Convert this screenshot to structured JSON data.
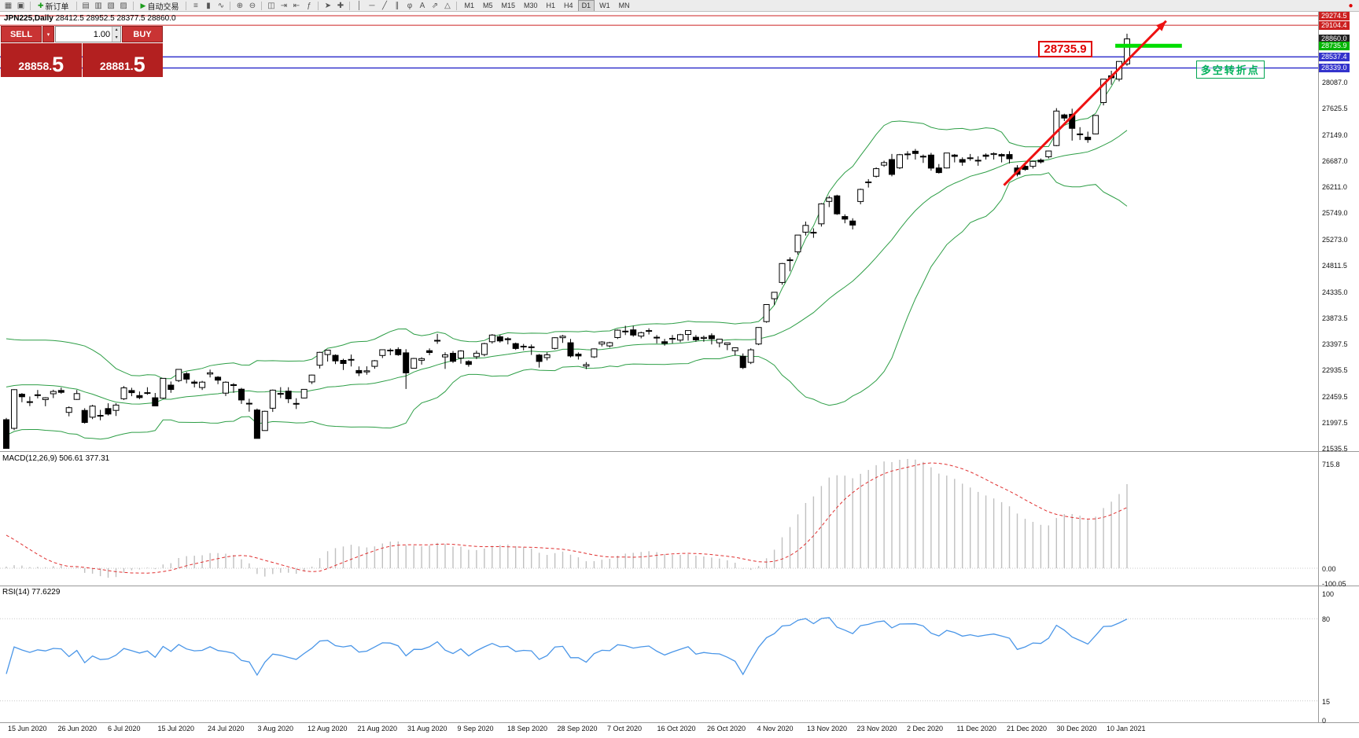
{
  "toolbar": {
    "items": [
      {
        "type": "icon",
        "name": "chart-window-icon",
        "glyph": "▦"
      },
      {
        "type": "icon",
        "name": "maximize-icon",
        "glyph": "▣"
      },
      {
        "type": "sep"
      },
      {
        "type": "button",
        "name": "new-order-button",
        "glyph": "✚",
        "glyph_color": "#1c9c1c",
        "label": "新订单"
      },
      {
        "type": "sep"
      },
      {
        "type": "icon",
        "name": "chart-profiles-icon",
        "glyph": "▤"
      },
      {
        "type": "icon",
        "name": "market-watch-icon",
        "glyph": "▥"
      },
      {
        "type": "icon",
        "name": "data-window-icon",
        "glyph": "▧"
      },
      {
        "type": "icon",
        "name": "navigator-icon",
        "glyph": "▨"
      },
      {
        "type": "sep"
      },
      {
        "type": "button",
        "name": "autotrade-button",
        "glyph": "▶",
        "glyph_color": "#1c9c1c",
        "label": "自动交易"
      },
      {
        "type": "sep"
      },
      {
        "type": "icon",
        "name": "bars-icon",
        "glyph": "≡"
      },
      {
        "type": "icon",
        "name": "candles-icon",
        "glyph": "▮"
      },
      {
        "type": "icon",
        "name": "line-chart-icon",
        "glyph": "∿"
      },
      {
        "type": "sep"
      },
      {
        "type": "icon",
        "name": "zoom-in-icon",
        "glyph": "⊕"
      },
      {
        "type": "icon",
        "name": "zoom-out-icon",
        "glyph": "⊖"
      },
      {
        "type": "sep"
      },
      {
        "type": "icon",
        "name": "tile-windows-icon",
        "glyph": "◫"
      },
      {
        "type": "icon",
        "name": "auto-scroll-icon",
        "glyph": "⇥"
      },
      {
        "type": "icon",
        "name": "chart-shift-icon",
        "glyph": "⇤"
      },
      {
        "type": "icon",
        "name": "indicators-icon",
        "glyph": "ƒ"
      },
      {
        "type": "sep"
      },
      {
        "type": "icon",
        "name": "cursor-icon",
        "glyph": "➤"
      },
      {
        "type": "icon",
        "name": "crosshair-icon",
        "glyph": "✚"
      },
      {
        "type": "sep"
      },
      {
        "type": "icon",
        "name": "vline-icon",
        "glyph": "│"
      },
      {
        "type": "icon",
        "name": "hline-icon",
        "glyph": "─"
      },
      {
        "type": "icon",
        "name": "trendline-icon",
        "glyph": "╱"
      },
      {
        "type": "icon",
        "name": "channel-icon",
        "glyph": "∥"
      },
      {
        "type": "icon",
        "name": "fibo-icon",
        "glyph": "φ"
      },
      {
        "type": "icon",
        "name": "text-icon",
        "glyph": "A"
      },
      {
        "type": "icon",
        "name": "arrows-icon",
        "glyph": "⇗"
      },
      {
        "type": "icon",
        "name": "shapes-icon",
        "glyph": "△"
      },
      {
        "type": "sep"
      }
    ],
    "timeframes": [
      "M1",
      "M5",
      "M15",
      "M30",
      "H1",
      "H4",
      "D1",
      "W1",
      "MN"
    ],
    "active_timeframe": "D1",
    "alert_icon": {
      "name": "alert-icon",
      "glyph": "●",
      "color": "#dd0000"
    }
  },
  "chart": {
    "symbol_period": "JPN225,Daily",
    "ohlc_text": "28412.5 28952.5 28377.5 28860.0"
  },
  "trade_panel": {
    "sell_label": "SELL",
    "buy_label": "BUY",
    "volume": "1.00",
    "dropdown_icon": "▾",
    "spinner_up_icon": "▴",
    "spinner_down_icon": "▾",
    "sell_price_main": "28858.",
    "sell_price_big": "5",
    "buy_price_main": "28881.",
    "buy_price_big": "5"
  },
  "annotations": {
    "price_label": "28735.9",
    "note_text": "多空转折点"
  },
  "macd": {
    "label": "MACD(12,26,9) 506.61 377.31",
    "scale": [
      {
        "text": "715.8",
        "value": 715.8
      },
      {
        "text": "0.00",
        "value": 0
      },
      {
        "text": "-100.05",
        "value": -100.05
      }
    ]
  },
  "rsi": {
    "label": "RSI(14) 77.6229",
    "scale": [
      {
        "text": "100",
        "value": 100
      },
      {
        "text": "80",
        "value": 80
      },
      {
        "text": "15",
        "value": 15
      },
      {
        "text": "0",
        "value": 0
      }
    ]
  },
  "chart_data": {
    "type": "candlestick",
    "symbol": "JPN225",
    "timeframe": "Daily",
    "visible_ohlc": {
      "open": 28412.5,
      "high": 28952.5,
      "low": 28377.5,
      "close": 28860.0
    },
    "y_axis": {
      "labels": [
        "28087.0",
        "27625.5",
        "27149.0",
        "26687.0",
        "26211.0",
        "25749.0",
        "25273.0",
        "24811.5",
        "24335.0",
        "23873.5",
        "23397.5",
        "22935.5",
        "22459.5",
        "21997.5",
        "21535.5"
      ]
    },
    "x_axis": {
      "labels": [
        "15 Jun 2020",
        "26 Jun 2020",
        "6 Jul 2020",
        "15 Jul 2020",
        "24 Jul 2020",
        "3 Aug 2020",
        "12 Aug 2020",
        "21 Aug 2020",
        "31 Aug 2020",
        "9 Sep 2020",
        "18 Sep 2020",
        "28 Sep 2020",
        "7 Oct 2020",
        "16 Oct 2020",
        "26 Oct 2020",
        "4 Nov 2020",
        "13 Nov 2020",
        "23 Nov 2020",
        "2 Dec 2020",
        "11 Dec 2020",
        "21 Dec 2020",
        "30 Dec 2020",
        "10 Jan 2021"
      ]
    },
    "price_tags": [
      {
        "text": "29274.5",
        "price": 29274.5,
        "color": "#cc2020"
      },
      {
        "text": "29104.4",
        "price": 29104.4,
        "color": "#cc2020"
      },
      {
        "text": "28860.0",
        "price": 28860.0,
        "color": "#222222"
      },
      {
        "text": "28735.9",
        "price": 28735.9,
        "color": "#00b400"
      },
      {
        "text": "28537.4",
        "price": 28537.4,
        "color": "#3333cc"
      },
      {
        "text": "28339.0",
        "price": 28339.0,
        "color": "#3333cc"
      }
    ],
    "levels": {
      "red_lines": [
        29274.5,
        29104.4
      ],
      "blue_lines": [
        28537.4,
        28339.0
      ],
      "green_segment": {
        "price": 28735.9,
        "from_index": 141.5,
        "to_index": 150
      }
    },
    "trend_arrow": {
      "from": {
        "index": 127.3,
        "price": 26240
      },
      "to": {
        "index": 148,
        "price": 29180
      },
      "color": "#ee1111"
    },
    "price_label_anchor": {
      "index": 131.7,
      "price": 28827
    },
    "note_anchor": {
      "index": 151.8,
      "price": 28472
    },
    "indicators": {
      "bollinger": {
        "period": 20,
        "deviation": 2
      },
      "macd": {
        "fast": 12,
        "slow": 26,
        "signal": 9,
        "current": [
          506.61,
          377.31
        ]
      },
      "rsi": {
        "period": 14,
        "current": 77.6229
      }
    },
    "preroll_closes": [
      21900,
      22050,
      22200,
      22350,
      22480,
      22600,
      22700,
      22800,
      22850,
      22900,
      23000,
      23080,
      23120,
      23180,
      23120,
      22950,
      22850,
      22480,
      22300,
      22050
    ],
    "candles": [
      [
        22044,
        22075,
        21529,
        21531
      ],
      [
        21890,
        22590,
        21857,
        22582
      ],
      [
        22501,
        22522,
        22357,
        22456
      ],
      [
        22366,
        22460,
        22288,
        22355
      ],
      [
        22491,
        22576,
        22426,
        22479
      ],
      [
        22404,
        22447,
        22285,
        22437
      ],
      [
        22508,
        22581,
        22432,
        22549
      ],
      [
        22568,
        22620,
        22508,
        22534
      ],
      [
        22176,
        22282,
        22105,
        22260
      ],
      [
        22408,
        22576,
        22399,
        22512
      ],
      [
        22210,
        22250,
        21974,
        21995
      ],
      [
        22090,
        22310,
        22054,
        22288
      ],
      [
        22121,
        22220,
        22035,
        22122
      ],
      [
        22244,
        22338,
        22120,
        22146
      ],
      [
        22211,
        22339,
        22112,
        22306
      ],
      [
        22418,
        22646,
        22397,
        22614
      ],
      [
        22567,
        22615,
        22465,
        22529
      ],
      [
        22476,
        22550,
        22411,
        22439
      ],
      [
        22522,
        22626,
        22490,
        22529
      ],
      [
        22437,
        22523,
        22286,
        22291
      ],
      [
        22430,
        22784,
        22418,
        22784
      ],
      [
        22664,
        22728,
        22526,
        22587
      ],
      [
        22745,
        22946,
        22718,
        22945
      ],
      [
        22867,
        22897,
        22696,
        22770
      ],
      [
        22718,
        22754,
        22622,
        22696
      ],
      [
        22620,
        22740,
        22576,
        22717
      ],
      [
        22862,
        22940,
        22801,
        22884
      ],
      [
        22805,
        22824,
        22680,
        22751
      ],
      [
        22520,
        22729,
        22468,
        22715
      ],
      [
        22672,
        22698,
        22526,
        22657
      ],
      [
        22590,
        22614,
        22327,
        22397
      ],
      [
        22339,
        22419,
        22188,
        22339
      ],
      [
        22218,
        22245,
        21710,
        21710
      ],
      [
        21851,
        22205,
        21851,
        22195
      ],
      [
        22250,
        22585,
        22184,
        22573
      ],
      [
        22513,
        22627,
        22432,
        22514
      ],
      [
        22555,
        22626,
        22341,
        22418
      ],
      [
        22336,
        22428,
        22236,
        22330
      ],
      [
        22432,
        22593,
        22424,
        22587
      ],
      [
        22721,
        22851,
        22683,
        22844
      ],
      [
        23020,
        23260,
        22960,
        23250
      ],
      [
        23210,
        23290,
        23085,
        23289
      ],
      [
        23196,
        23213,
        23041,
        23096
      ],
      [
        23107,
        23135,
        22934,
        23051
      ],
      [
        23123,
        23211,
        22997,
        23110
      ],
      [
        22925,
        22998,
        22825,
        22880
      ],
      [
        22900,
        23000,
        22850,
        22920
      ],
      [
        23000,
        23112,
        22956,
        23100
      ],
      [
        23193,
        23302,
        23148,
        23296
      ],
      [
        23290,
        23320,
        23198,
        23290
      ],
      [
        23301,
        23340,
        23188,
        23208
      ],
      [
        23241,
        23306,
        22594,
        22882
      ],
      [
        22966,
        23150,
        22966,
        23140
      ],
      [
        23109,
        23163,
        23030,
        23138
      ],
      [
        23280,
        23320,
        23200,
        23247
      ],
      [
        23452,
        23580,
        23402,
        23465
      ],
      [
        23168,
        23251,
        22953,
        23205
      ],
      [
        23233,
        23274,
        23060,
        23090
      ],
      [
        23148,
        23290,
        23047,
        23274
      ],
      [
        23085,
        23110,
        22992,
        23033
      ],
      [
        23173,
        23280,
        23131,
        23235
      ],
      [
        23210,
        23420,
        23180,
        23406
      ],
      [
        23440,
        23577,
        23406,
        23559
      ],
      [
        23529,
        23565,
        23425,
        23455
      ],
      [
        23493,
        23520,
        23392,
        23476
      ],
      [
        23406,
        23425,
        23293,
        23319
      ],
      [
        23360,
        23400,
        23286,
        23360
      ],
      [
        23348,
        23390,
        23204,
        23346
      ],
      [
        23201,
        23221,
        22977,
        23087
      ],
      [
        23156,
        23250,
        23106,
        23205
      ],
      [
        23320,
        23520,
        23300,
        23512
      ],
      [
        23512,
        23560,
        23420,
        23539
      ],
      [
        23422,
        23490,
        23160,
        23185
      ],
      [
        23218,
        23250,
        23120,
        23185
      ],
      [
        23003,
        23075,
        22951,
        23030
      ],
      [
        23169,
        23320,
        23150,
        23312
      ],
      [
        23399,
        23450,
        23355,
        23434
      ],
      [
        23366,
        23438,
        23336,
        23423
      ],
      [
        23515,
        23660,
        23489,
        23647
      ],
      [
        23630,
        23725,
        23560,
        23620
      ],
      [
        23652,
        23725,
        23530,
        23559
      ],
      [
        23540,
        23620,
        23500,
        23601
      ],
      [
        23640,
        23680,
        23570,
        23627
      ],
      [
        23520,
        23560,
        23410,
        23507
      ],
      [
        23440,
        23490,
        23370,
        23411
      ],
      [
        23500,
        23560,
        23410,
        23494
      ],
      [
        23470,
        23580,
        23430,
        23567
      ],
      [
        23570,
        23640,
        23460,
        23639
      ],
      [
        23520,
        23560,
        23440,
        23474
      ],
      [
        23500,
        23550,
        23440,
        23517
      ],
      [
        23550,
        23590,
        23390,
        23494
      ],
      [
        23420,
        23490,
        23340,
        23486
      ],
      [
        23390,
        23420,
        23290,
        23419
      ],
      [
        23280,
        23340,
        23190,
        23332
      ],
      [
        23180,
        23230,
        22950,
        22977
      ],
      [
        23070,
        23320,
        23040,
        23295
      ],
      [
        23400,
        23700,
        23380,
        23695
      ],
      [
        23800,
        24110,
        23780,
        24105
      ],
      [
        24210,
        24330,
        24100,
        24325
      ],
      [
        24500,
        24850,
        24460,
        24839
      ],
      [
        24900,
        24950,
        24700,
        24906
      ],
      [
        25050,
        25350,
        25000,
        25349
      ],
      [
        25400,
        25590,
        25340,
        25521
      ],
      [
        25400,
        25470,
        25300,
        25385
      ],
      [
        25550,
        25920,
        25500,
        25907
      ],
      [
        25950,
        26050,
        25850,
        26014
      ],
      [
        26050,
        26070,
        25710,
        25728
      ],
      [
        25680,
        25720,
        25560,
        25634
      ],
      [
        25600,
        25650,
        25450,
        25527
      ],
      [
        25950,
        26180,
        25900,
        26166
      ],
      [
        26300,
        26350,
        26200,
        26297
      ],
      [
        26400,
        26560,
        26380,
        26537
      ],
      [
        26600,
        26680,
        26570,
        26645
      ],
      [
        26700,
        26800,
        26400,
        26434
      ],
      [
        26550,
        26800,
        26530,
        26787
      ],
      [
        26800,
        26850,
        26700,
        26800
      ],
      [
        26850,
        26890,
        26700,
        26809
      ],
      [
        26760,
        26790,
        26640,
        26751
      ],
      [
        26780,
        26820,
        26500,
        26547
      ],
      [
        26550,
        26620,
        26450,
        26467
      ],
      [
        26550,
        26820,
        26540,
        26817
      ],
      [
        26780,
        26800,
        26650,
        26756
      ],
      [
        26700,
        26740,
        26590,
        26653
      ],
      [
        26730,
        26800,
        26680,
        26732
      ],
      [
        26680,
        26760,
        26590,
        26688
      ],
      [
        26780,
        26810,
        26700,
        26757
      ],
      [
        26790,
        26830,
        26700,
        26807
      ],
      [
        26790,
        26810,
        26650,
        26763
      ],
      [
        26790,
        26850,
        26630,
        26714
      ],
      [
        26550,
        26600,
        26400,
        26436
      ],
      [
        26580,
        26620,
        26500,
        26524
      ],
      [
        26580,
        26680,
        26540,
        26668
      ],
      [
        26690,
        26720,
        26630,
        26657
      ],
      [
        26750,
        26860,
        26720,
        26854
      ],
      [
        26950,
        27620,
        26940,
        27568
      ],
      [
        27500,
        27520,
        27390,
        27444
      ],
      [
        27510,
        27610,
        27040,
        27258
      ],
      [
        27150,
        27280,
        27050,
        27159
      ],
      [
        27100,
        27200,
        27000,
        27056
      ],
      [
        27160,
        27500,
        27150,
        27490
      ],
      [
        27720,
        28140,
        27670,
        28139
      ],
      [
        28200,
        28290,
        28040,
        28164
      ],
      [
        28140,
        28460,
        28100,
        28456
      ],
      [
        28412.5,
        28952.5,
        28377.5,
        28860
      ]
    ]
  }
}
